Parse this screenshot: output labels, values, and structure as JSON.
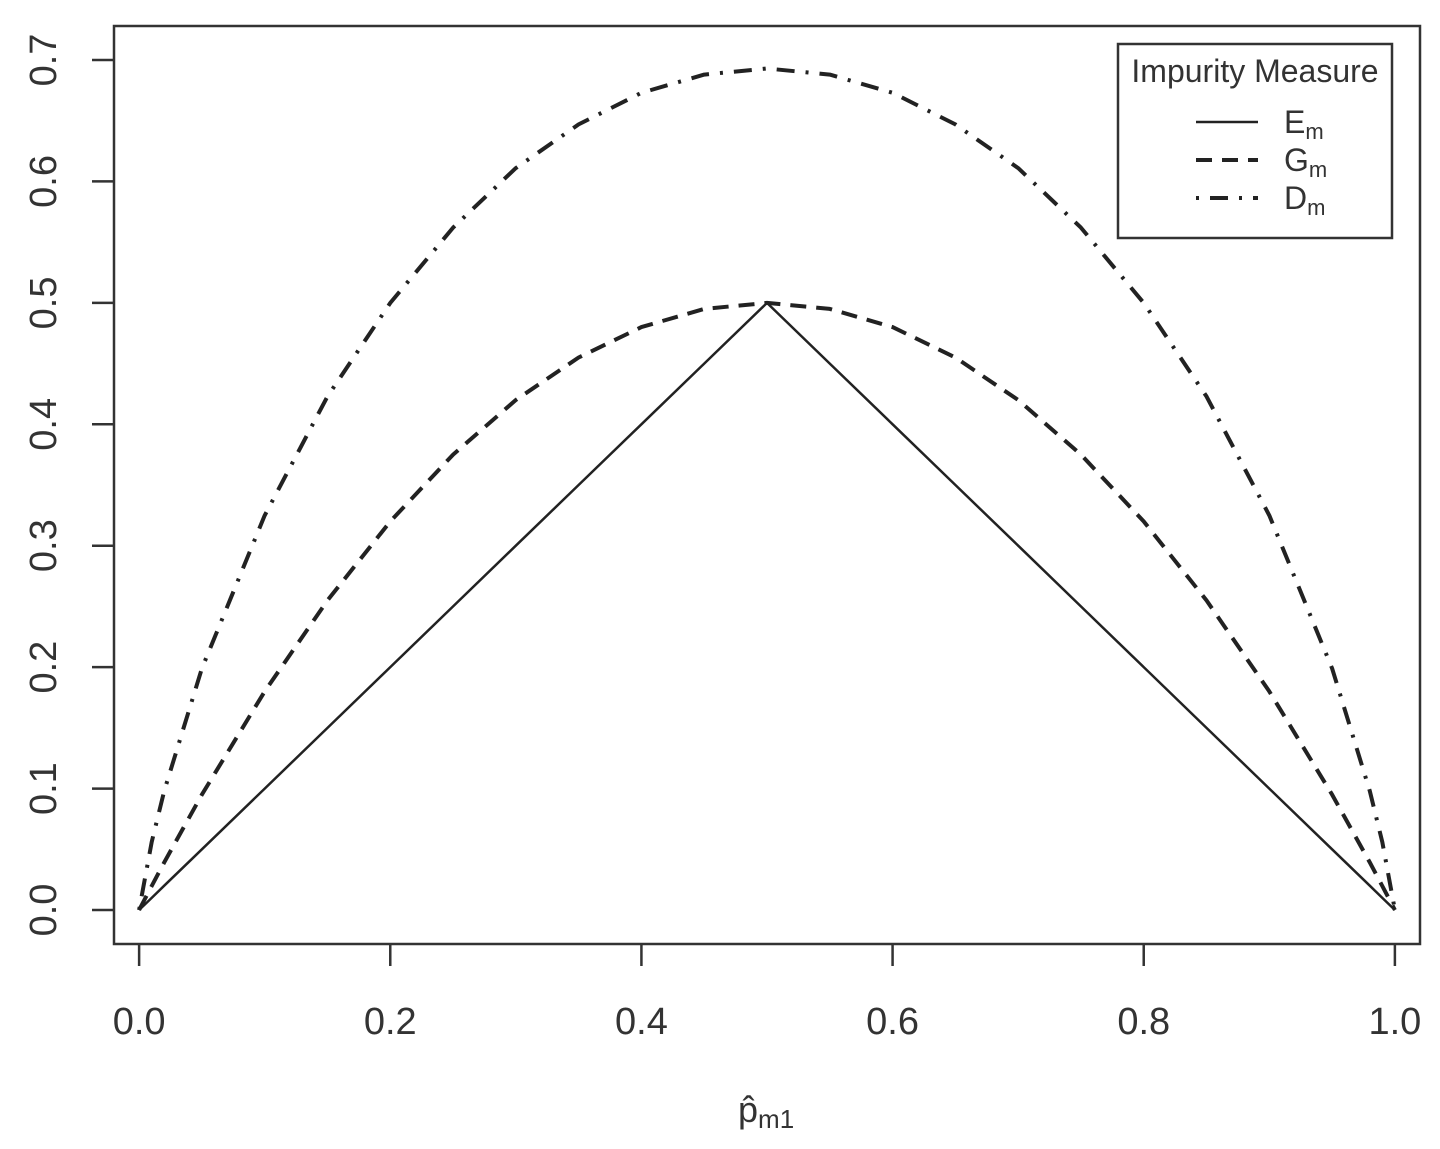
{
  "chart_data": {
    "type": "line",
    "title": "",
    "xlabel": "p̂",
    "xlabel_subscript": "m1",
    "ylabel": "",
    "xlim": [
      -0.02,
      1.02
    ],
    "ylim": [
      -0.028,
      0.728
    ],
    "x_ticks": [
      "0.0",
      "0.2",
      "0.4",
      "0.6",
      "0.8",
      "1.0"
    ],
    "x_tick_values": [
      0.0,
      0.2,
      0.4,
      0.6,
      0.8,
      1.0
    ],
    "y_ticks": [
      "0.0",
      "0.1",
      "0.2",
      "0.3",
      "0.4",
      "0.5",
      "0.6",
      "0.7"
    ],
    "y_tick_values": [
      0.0,
      0.1,
      0.2,
      0.3,
      0.4,
      0.5,
      0.6,
      0.7
    ],
    "grid": false,
    "legend": {
      "title": "Impurity Measure",
      "placement": "top-right"
    },
    "x": [
      0.0,
      0.01,
      0.02,
      0.05,
      0.1,
      0.15,
      0.2,
      0.25,
      0.3,
      0.35,
      0.4,
      0.45,
      0.5,
      0.55,
      0.6,
      0.65,
      0.7,
      0.75,
      0.8,
      0.85,
      0.9,
      0.95,
      0.98,
      0.99,
      1.0
    ],
    "series": [
      {
        "name": "E",
        "name_subscript": "m",
        "style": "solid",
        "values": [
          0.0,
          0.01,
          0.02,
          0.05,
          0.1,
          0.15,
          0.2,
          0.25,
          0.3,
          0.35,
          0.4,
          0.45,
          0.5,
          0.45,
          0.4,
          0.35,
          0.3,
          0.25,
          0.2,
          0.15,
          0.1,
          0.05,
          0.02,
          0.01,
          0.0
        ]
      },
      {
        "name": "G",
        "name_subscript": "m",
        "style": "dashed",
        "values": [
          0.0,
          0.0198,
          0.0392,
          0.095,
          0.18,
          0.255,
          0.32,
          0.375,
          0.42,
          0.455,
          0.48,
          0.495,
          0.5,
          0.495,
          0.48,
          0.455,
          0.42,
          0.375,
          0.32,
          0.255,
          0.18,
          0.095,
          0.0392,
          0.0198,
          0.0
        ]
      },
      {
        "name": "D",
        "name_subscript": "m",
        "style": "dotdash",
        "values": [
          0.0,
          0.056,
          0.098,
          0.199,
          0.325,
          0.423,
          0.5,
          0.562,
          0.611,
          0.647,
          0.673,
          0.688,
          0.693,
          0.688,
          0.673,
          0.647,
          0.611,
          0.562,
          0.5,
          0.423,
          0.325,
          0.199,
          0.098,
          0.056,
          0.0
        ]
      }
    ]
  }
}
